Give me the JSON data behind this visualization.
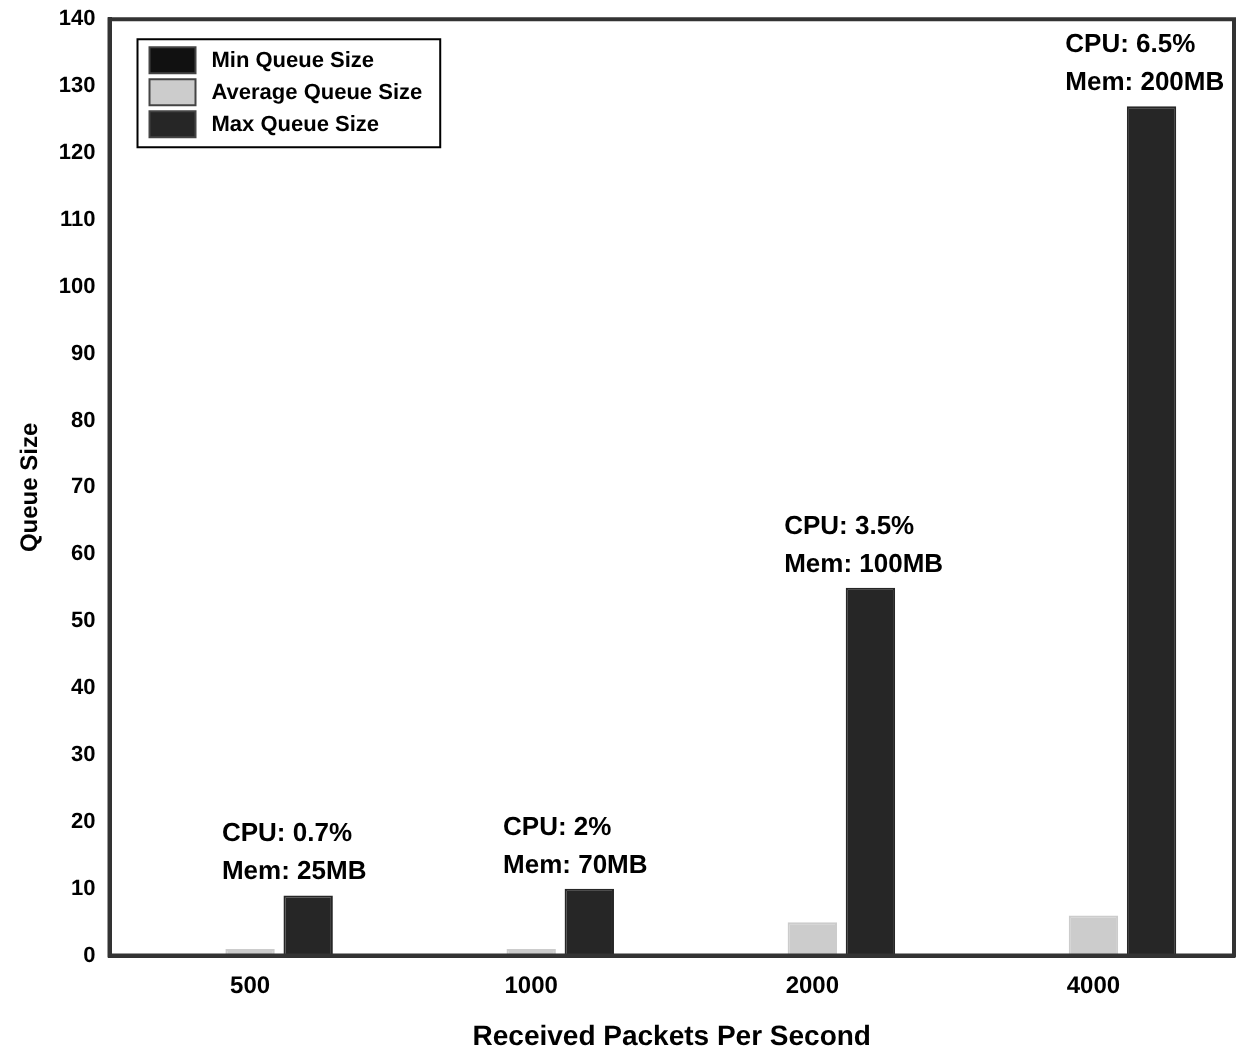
{
  "chart_data": {
    "type": "bar",
    "xlabel": "Received Packets Per Second",
    "ylabel": "Queue Size",
    "categories": [
      "500",
      "1000",
      "2000",
      "4000"
    ],
    "series": [
      {
        "name": "Min Queue Size",
        "color": "#111111",
        "values": [
          0,
          0,
          0,
          0
        ]
      },
      {
        "name": "Average Queue Size",
        "color": "#cccccc",
        "values": [
          1,
          1,
          5,
          6
        ]
      },
      {
        "name": "Max Queue Size",
        "color": "#262626",
        "values": [
          9,
          10,
          55,
          127
        ]
      }
    ],
    "ylim": [
      0,
      140
    ],
    "yticks": [
      0,
      10,
      20,
      30,
      40,
      50,
      60,
      70,
      80,
      90,
      100,
      110,
      120,
      130,
      140
    ],
    "grid": false,
    "legend": "top left",
    "annotations": [
      "CPU: 0.7%\nMem: 25MB",
      "CPU: 2%\nMem: 70MB",
      "CPU: 3.5%\nMem: 100MB",
      "CPU: 6.5%\nMem: 200MB"
    ]
  }
}
